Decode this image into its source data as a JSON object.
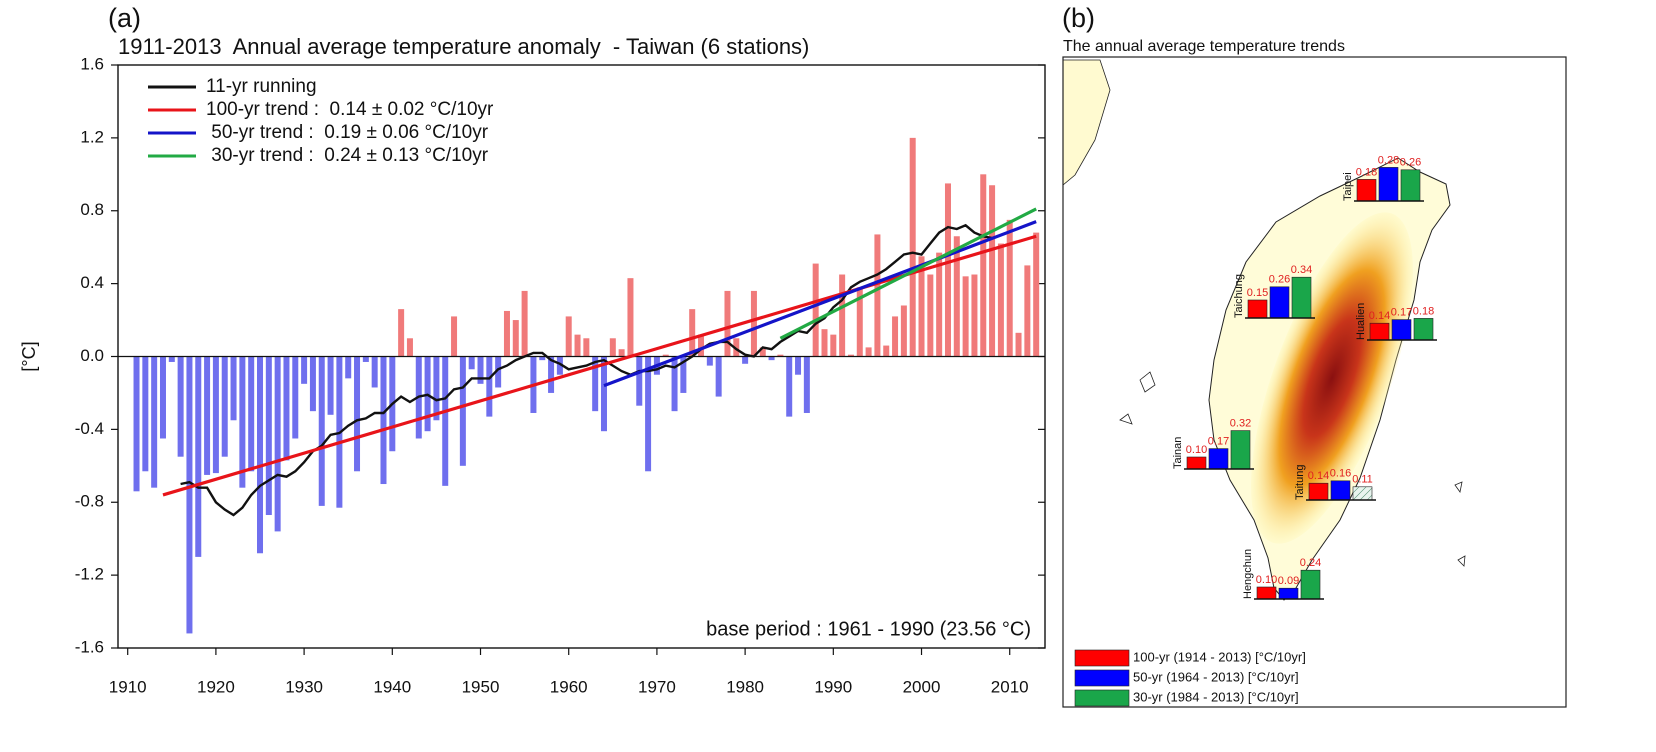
{
  "chart_data": [
    {
      "type": "bar",
      "label": "(a)",
      "title": "1911-2013  Annual average temperature anomaly  - Taiwan (6 stations)",
      "y_label": "[°C]",
      "annotation": "base period : 1961 - 1990 (23.56 °C)",
      "positive_color": "#f07a7a",
      "negative_color": "#6f6fee",
      "xlim": [
        1908.9,
        2014
      ],
      "ylim": [
        -1.6,
        1.6
      ],
      "xticks": [
        1910,
        1920,
        1930,
        1940,
        1950,
        1960,
        1970,
        1980,
        1990,
        2000,
        2010
      ],
      "yticks": [
        1.6,
        1.2,
        0.8,
        0.4,
        {
          "value": 0,
          "label": "0.0"
        },
        -0.4,
        -0.8,
        -1.2,
        -1.6
      ],
      "x": [
        1911,
        1912,
        1913,
        1914,
        1915,
        1916,
        1917,
        1918,
        1919,
        1920,
        1921,
        1922,
        1923,
        1924,
        1925,
        1926,
        1927,
        1928,
        1929,
        1930,
        1931,
        1932,
        1933,
        1934,
        1935,
        1936,
        1937,
        1938,
        1939,
        1940,
        1941,
        1942,
        1943,
        1944,
        1945,
        1946,
        1947,
        1948,
        1949,
        1950,
        1951,
        1952,
        1953,
        1954,
        1955,
        1956,
        1957,
        1958,
        1959,
        1960,
        1961,
        1962,
        1963,
        1964,
        1965,
        1966,
        1967,
        1968,
        1969,
        1970,
        1971,
        1972,
        1973,
        1974,
        1975,
        1976,
        1977,
        1978,
        1979,
        1980,
        1981,
        1982,
        1983,
        1984,
        1985,
        1986,
        1987,
        1988,
        1989,
        1990,
        1991,
        1992,
        1993,
        1994,
        1995,
        1996,
        1997,
        1998,
        1999,
        2000,
        2001,
        2002,
        2003,
        2004,
        2005,
        2006,
        2007,
        2008,
        2009,
        2010,
        2011,
        2012,
        2013
      ],
      "values": [
        -0.74,
        -0.63,
        -0.72,
        -0.45,
        -0.03,
        -0.55,
        -1.52,
        -1.1,
        -0.65,
        -0.64,
        -0.55,
        -0.35,
        -0.72,
        -0.63,
        -1.08,
        -0.87,
        -0.96,
        -0.57,
        -0.45,
        -0.15,
        -0.3,
        -0.82,
        -0.32,
        -0.83,
        -0.12,
        -0.63,
        -0.03,
        -0.17,
        -0.7,
        -0.52,
        0.26,
        0.1,
        -0.45,
        -0.41,
        -0.35,
        -0.71,
        0.22,
        -0.6,
        -0.07,
        -0.15,
        -0.33,
        -0.17,
        0.25,
        0.2,
        0.36,
        -0.31,
        -0.02,
        -0.2,
        -0.1,
        0.22,
        0.12,
        0.1,
        -0.3,
        -0.41,
        0.1,
        0.04,
        0.43,
        -0.27,
        -0.63,
        -0.1,
        0.01,
        -0.3,
        -0.2,
        0.26,
        0.12,
        -0.05,
        -0.22,
        0.36,
        0.1,
        -0.04,
        0.36,
        0.05,
        -0.02,
        0.01,
        -0.33,
        -0.1,
        -0.31,
        0.51,
        0.15,
        0.12,
        0.45,
        0.01,
        0.38,
        0.05,
        0.67,
        0.06,
        0.22,
        0.28,
        1.2,
        0.55,
        0.45,
        0.57,
        0.95,
        0.66,
        0.44,
        0.45,
        1.0,
        0.94,
        0.62,
        0.75,
        0.13,
        0.5,
        0.68
      ],
      "series": [
        {
          "name": "11-yr running",
          "color": "#111111",
          "values": [
            null,
            null,
            null,
            null,
            null,
            -0.7,
            -0.69,
            -0.72,
            -0.72,
            -0.8,
            -0.84,
            -0.87,
            -0.83,
            -0.76,
            -0.71,
            -0.68,
            -0.65,
            -0.66,
            -0.63,
            -0.58,
            -0.52,
            -0.49,
            -0.43,
            -0.42,
            -0.38,
            -0.35,
            -0.34,
            -0.31,
            -0.31,
            -0.26,
            -0.22,
            -0.25,
            -0.22,
            -0.21,
            -0.24,
            -0.23,
            -0.18,
            -0.17,
            -0.12,
            -0.12,
            -0.12,
            -0.07,
            -0.05,
            -0.02,
            0,
            0.02,
            0.02,
            -0.02,
            -0.04,
            -0.07,
            -0.06,
            -0.05,
            -0.03,
            -0.02,
            -0.05,
            -0.08,
            -0.1,
            -0.08,
            -0.08,
            -0.07,
            -0.05,
            -0.06,
            -0.03,
            0,
            0.04,
            0.07,
            0.08,
            0.08,
            0.04,
            0.01,
            0,
            0.05,
            0.04,
            0.08,
            0.11,
            0.14,
            0.13,
            0.18,
            0.21,
            0.27,
            0.31,
            0.38,
            0.41,
            0.43,
            0.45,
            0.48,
            0.52,
            0.56,
            0.57,
            0.56,
            0.62,
            0.68,
            0.71,
            0.7,
            0.72,
            0.68,
            0.66,
            0.65,
            null,
            null,
            null,
            null,
            null
          ]
        }
      ],
      "trends": [
        {
          "name": "100-yr trend :  0.14 ± 0.02 °C/10yr",
          "color": "#e8141a",
          "x": [
            1914,
            2013
          ],
          "values": [
            -0.76,
            0.66
          ]
        },
        {
          "name": " 50-yr trend :  0.19 ± 0.06 °C/10yr",
          "color": "#1414c8",
          "x": [
            1964,
            2013
          ],
          "values": [
            -0.16,
            0.74
          ]
        },
        {
          "name": " 30-yr trend :  0.24 ± 0.13 °C/10yr",
          "color": "#22aa44",
          "x": [
            1984,
            2013
          ],
          "values": [
            0.1,
            0.81
          ]
        }
      ]
    },
    {
      "type": "station-bars",
      "label": "(b)",
      "title": "The annual average temperature trends",
      "series": [
        {
          "name": "100-yr (1914 - 2013) [°C/10yr]",
          "color": "#ff0000"
        },
        {
          "name": "50-yr (1964 - 2013) [°C/10yr]",
          "color": "#0000ff"
        },
        {
          "name": "30-yr (1984 - 2013) [°C/10yr]",
          "color": "#1aa64a"
        }
      ],
      "stations": [
        {
          "name": "Taipei",
          "values": [
            0.18,
            0.28,
            0.26
          ],
          "hatched": [
            false,
            false,
            false
          ]
        },
        {
          "name": "Taichung",
          "values": [
            0.15,
            0.26,
            0.34
          ],
          "hatched": [
            false,
            false,
            false
          ]
        },
        {
          "name": "Hualien",
          "values": [
            0.14,
            0.17,
            0.18
          ],
          "hatched": [
            false,
            false,
            false
          ]
        },
        {
          "name": "Tainan",
          "values": [
            0.1,
            0.17,
            0.32
          ],
          "value_labels": [
            "0.10",
            "0.17",
            "0.32"
          ],
          "hatched": [
            false,
            false,
            false
          ]
        },
        {
          "name": "Taitung",
          "values": [
            0.14,
            0.16,
            0.11
          ],
          "hatched": [
            false,
            false,
            true
          ]
        },
        {
          "name": "Hengchun",
          "values": [
            0.1,
            0.09,
            0.24
          ],
          "value_labels": [
            "0.10",
            "0.09",
            "0.24"
          ],
          "hatched": [
            false,
            false,
            false
          ]
        }
      ]
    }
  ]
}
